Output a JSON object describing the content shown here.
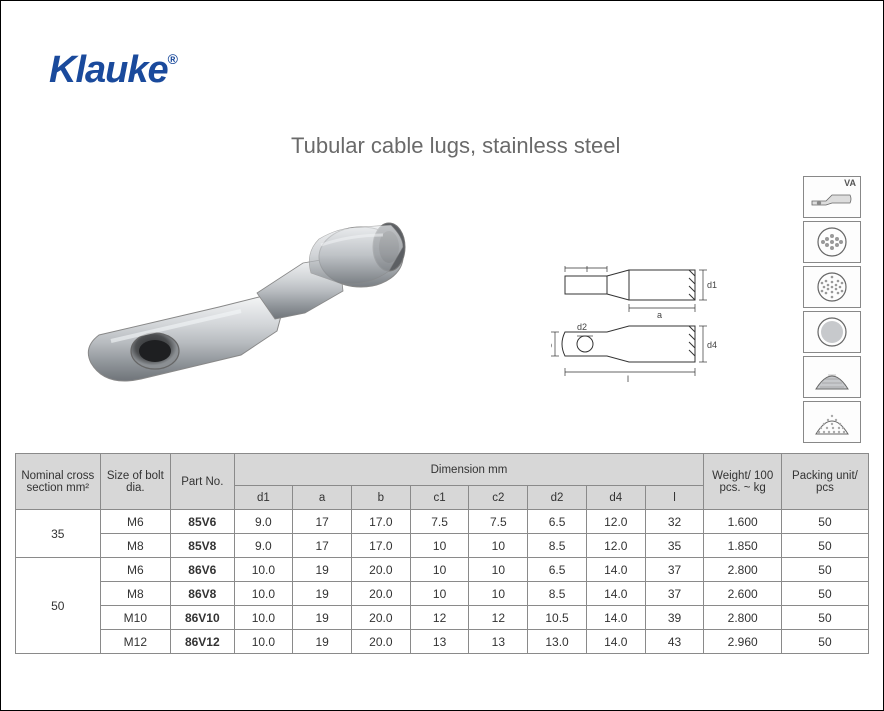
{
  "brand": "Klauke",
  "reg": "®",
  "title": "Tubular cable lugs, stainless steel",
  "icons": {
    "va_label": "VA"
  },
  "diagram": {
    "top_labels": {
      "c1": "c1",
      "c2": "c2",
      "a": "a",
      "d1": "d1"
    },
    "bottom_labels": {
      "b": "b",
      "d2": "d2",
      "l": "l",
      "d4": "d4"
    }
  },
  "table": {
    "headers": {
      "nominal": "Nominal cross section mm²",
      "bolt": "Size of bolt dia.",
      "part": "Part No.",
      "dim": "Dimension mm",
      "d1": "d1",
      "a": "a",
      "b": "b",
      "c1": "c1",
      "c2": "c2",
      "d2": "d2",
      "d4": "d4",
      "l": "l",
      "weight": "Weight/ 100 pcs. ~ kg",
      "packing": "Packing unit/ pcs"
    },
    "groups": [
      {
        "nominal": "35",
        "rows": [
          {
            "bolt": "M6",
            "part": "85V6",
            "d1": "9.0",
            "a": "17",
            "b": "17.0",
            "c1": "7.5",
            "c2": "7.5",
            "d2": "6.5",
            "d4": "12.0",
            "l": "32",
            "weight": "1.600",
            "packing": "50"
          },
          {
            "bolt": "M8",
            "part": "85V8",
            "d1": "9.0",
            "a": "17",
            "b": "17.0",
            "c1": "10",
            "c2": "10",
            "d2": "8.5",
            "d4": "12.0",
            "l": "35",
            "weight": "1.850",
            "packing": "50"
          }
        ]
      },
      {
        "nominal": "50",
        "rows": [
          {
            "bolt": "M6",
            "part": "86V6",
            "d1": "10.0",
            "a": "19",
            "b": "20.0",
            "c1": "10",
            "c2": "10",
            "d2": "6.5",
            "d4": "14.0",
            "l": "37",
            "weight": "2.800",
            "packing": "50"
          },
          {
            "bolt": "M8",
            "part": "86V8",
            "d1": "10.0",
            "a": "19",
            "b": "20.0",
            "c1": "10",
            "c2": "10",
            "d2": "8.5",
            "d4": "14.0",
            "l": "37",
            "weight": "2.600",
            "packing": "50"
          },
          {
            "bolt": "M10",
            "part": "86V10",
            "d1": "10.0",
            "a": "19",
            "b": "20.0",
            "c1": "12",
            "c2": "12",
            "d2": "10.5",
            "d4": "14.0",
            "l": "39",
            "weight": "2.800",
            "packing": "50"
          },
          {
            "bolt": "M12",
            "part": "86V12",
            "d1": "10.0",
            "a": "19",
            "b": "20.0",
            "c1": "13",
            "c2": "13",
            "d2": "13.0",
            "d4": "14.0",
            "l": "43",
            "weight": "2.960",
            "packing": "50"
          }
        ]
      }
    ]
  }
}
